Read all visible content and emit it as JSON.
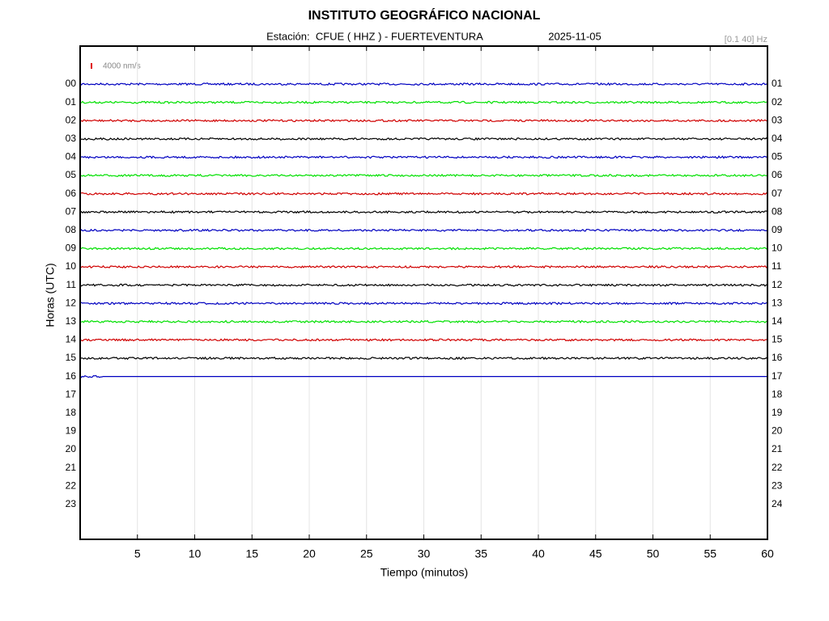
{
  "chart_data": {
    "type": "helicorder",
    "title": "INSTITUTO GEOGRÁFICO NACIONAL",
    "station": "Estación:  CFUE ( HHZ ) - FUERTEVENTURA",
    "date": "2025-11-05",
    "filter": "[0.1 40] Hz",
    "scale_label": "4000 nm/s",
    "scale_color": "#e00000",
    "xlabel": "Tiempo (minutos)",
    "ylabel": "Horas (UTC)",
    "xlim": [
      0,
      60
    ],
    "xticks": [
      5,
      10,
      15,
      20,
      25,
      30,
      35,
      40,
      45,
      50,
      55,
      60
    ],
    "grid": true,
    "left_labels": [
      "00",
      "01",
      "02",
      "03",
      "04",
      "05",
      "06",
      "07",
      "08",
      "09",
      "10",
      "11",
      "12",
      "13",
      "14",
      "15",
      "16",
      "17",
      "18",
      "19",
      "20",
      "21",
      "22",
      "23"
    ],
    "right_labels": [
      "01",
      "02",
      "03",
      "04",
      "05",
      "06",
      "07",
      "08",
      "09",
      "10",
      "11",
      "12",
      "13",
      "14",
      "15",
      "16",
      "17",
      "18",
      "19",
      "20",
      "21",
      "22",
      "23",
      "24"
    ],
    "colors": [
      "#0000c0",
      "#00e000",
      "#d00000",
      "#000000"
    ],
    "trace_end": [
      60,
      60,
      60,
      60,
      60,
      60,
      60,
      60,
      60,
      60,
      60,
      60,
      60,
      60,
      60,
      60,
      2
    ]
  }
}
